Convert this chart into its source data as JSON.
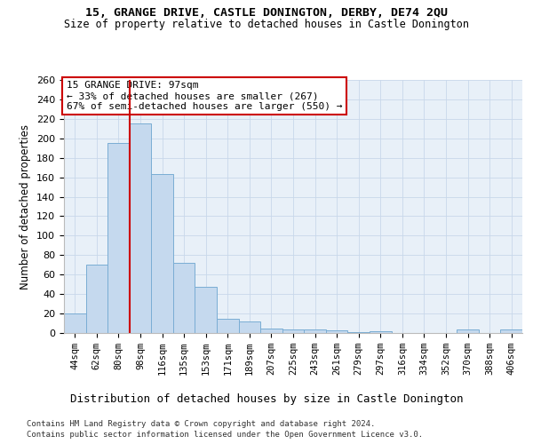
{
  "title1": "15, GRANGE DRIVE, CASTLE DONINGTON, DERBY, DE74 2QU",
  "title2": "Size of property relative to detached houses in Castle Donington",
  "xlabel": "Distribution of detached houses by size in Castle Donington",
  "ylabel": "Number of detached properties",
  "footnote1": "Contains HM Land Registry data © Crown copyright and database right 2024.",
  "footnote2": "Contains public sector information licensed under the Open Government Licence v3.0.",
  "bar_labels": [
    "44sqm",
    "62sqm",
    "80sqm",
    "98sqm",
    "116sqm",
    "135sqm",
    "153sqm",
    "171sqm",
    "189sqm",
    "207sqm",
    "225sqm",
    "243sqm",
    "261sqm",
    "279sqm",
    "297sqm",
    "316sqm",
    "334sqm",
    "352sqm",
    "370sqm",
    "388sqm",
    "406sqm"
  ],
  "bar_values": [
    20,
    70,
    195,
    215,
    163,
    72,
    47,
    15,
    12,
    5,
    4,
    4,
    3,
    1,
    2,
    0,
    0,
    0,
    4,
    0,
    4
  ],
  "bar_color": "#c5d9ee",
  "bar_edge_color": "#7aadd4",
  "background_color": "#e8f0f8",
  "vline_color": "#cc0000",
  "vline_x": 2.5,
  "annotation_line1": "15 GRANGE DRIVE: 97sqm",
  "annotation_line2": "← 33% of detached houses are smaller (267)",
  "annotation_line3": "67% of semi-detached houses are larger (550) →",
  "annotation_box_color": "#ffffff",
  "annotation_box_edge": "#cc0000",
  "ylim": [
    0,
    260
  ],
  "yticks": [
    0,
    20,
    40,
    60,
    80,
    100,
    120,
    140,
    160,
    180,
    200,
    220,
    240,
    260
  ],
  "grid_color": "#c8d8ea",
  "title1_fontsize": 9.5,
  "title2_fontsize": 8.5,
  "ylabel_fontsize": 8.5,
  "xlabel_fontsize": 9,
  "tick_fontsize": 7.5,
  "ytick_fontsize": 8,
  "annotation_fontsize": 8,
  "footnote_fontsize": 6.5
}
